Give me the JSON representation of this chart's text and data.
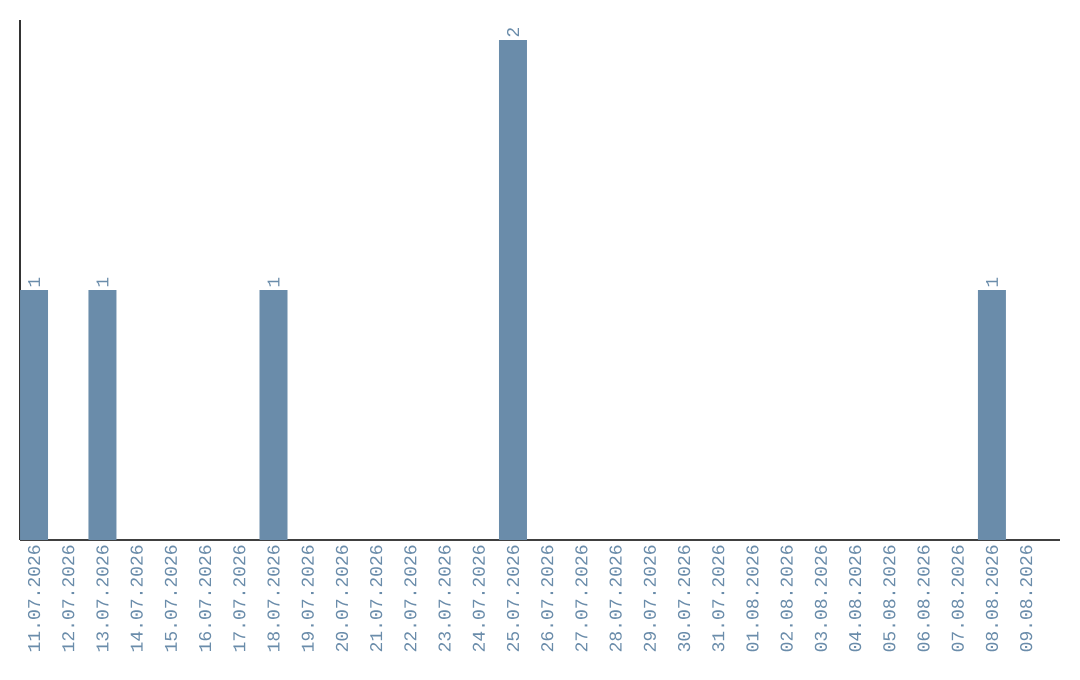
{
  "chart_data": {
    "type": "bar",
    "categories": [
      "11.07.2026",
      "12.07.2026",
      "13.07.2026",
      "14.07.2026",
      "15.07.2026",
      "16.07.2026",
      "17.07.2026",
      "18.07.2026",
      "19.07.2026",
      "20.07.2026",
      "21.07.2026",
      "22.07.2026",
      "23.07.2026",
      "24.07.2026",
      "25.07.2026",
      "26.07.2026",
      "27.07.2026",
      "28.07.2026",
      "29.07.2026",
      "30.07.2026",
      "31.07.2026",
      "01.08.2026",
      "02.08.2026",
      "03.08.2026",
      "04.08.2026",
      "05.08.2026",
      "06.08.2026",
      "07.08.2026",
      "08.08.2026",
      "09.08.2026"
    ],
    "values": [
      1,
      0,
      1,
      0,
      0,
      0,
      0,
      1,
      0,
      0,
      0,
      0,
      0,
      0,
      2,
      0,
      0,
      0,
      0,
      0,
      0,
      0,
      0,
      0,
      0,
      0,
      0,
      0,
      1,
      0
    ],
    "value_labels": [
      "1",
      null,
      "1",
      null,
      null,
      null,
      null,
      "1",
      null,
      null,
      null,
      null,
      null,
      null,
      "2",
      null,
      null,
      null,
      null,
      null,
      null,
      null,
      null,
      null,
      null,
      null,
      null,
      null,
      "1",
      null
    ],
    "color": "#6a8caa",
    "ylim": [
      0,
      2.08
    ]
  }
}
